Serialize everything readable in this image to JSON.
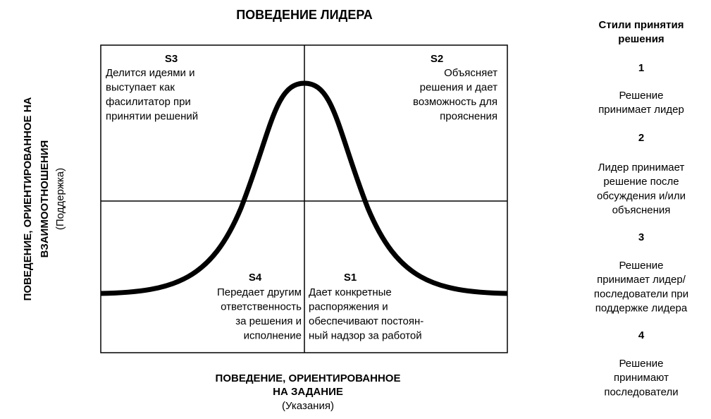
{
  "title": "ПОВЕДЕНИЕ ЛИДЕРА",
  "y_axis": {
    "lines": [
      "ПОВЕДЕНИЕ, ОРИЕНТИРОВАННОЕ НА",
      "ВЗАИМООТНОШЕНИЯ"
    ],
    "note": "(Поддержка)"
  },
  "x_axis": {
    "lines": [
      "ПОВЕДЕНИЕ, ОРИЕНТИРОВАННОЕ",
      "НА ЗАДАНИЕ"
    ],
    "note": "(Указания)"
  },
  "quadrants": [
    {
      "label": "S3",
      "lines": [
        "Делится идеями и",
        "выступает как",
        "фасилитатор при",
        "принятии решений"
      ]
    },
    {
      "label": "S2",
      "lines": [
        "Объясняет",
        "решения и дает",
        "возможность для",
        "прояснения"
      ]
    },
    {
      "label": "S4",
      "lines": [
        "Передает другим",
        "ответственность",
        "за решения и",
        "исполнение"
      ]
    },
    {
      "label": "S1",
      "lines": [
        "Дает конкретные",
        "распоряжения и",
        "обеспечивают постоян-",
        "ный надзор за работой"
      ]
    }
  ],
  "styles": {
    "heading": [
      "Стили принятия",
      "решения"
    ],
    "items": [
      {
        "number": "1",
        "lines": [
          "Решение",
          "принимает лидер"
        ]
      },
      {
        "number": "2",
        "lines": [
          "Лидер принимает",
          "решение после",
          "обсуждения и/или",
          "объяснения"
        ]
      },
      {
        "number": "3",
        "lines": [
          "Решение",
          "принимает лидер/",
          "последователи при",
          "поддержке лидера"
        ]
      },
      {
        "number": "4",
        "lines": [
          "Решение",
          "принимают",
          "последователи"
        ]
      }
    ]
  }
}
